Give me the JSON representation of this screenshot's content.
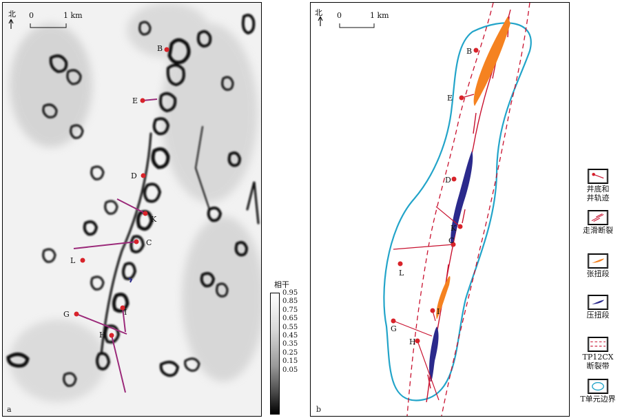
{
  "panel_a": {
    "north": "北",
    "scale": {
      "start": "0",
      "end": "1 km"
    },
    "tag": "a",
    "wells": [
      "B",
      "E",
      "D",
      "K",
      "C",
      "L",
      "G",
      "I",
      "H"
    ]
  },
  "colorbar": {
    "title": "相干",
    "ticks": [
      "0.95",
      "0.85",
      "0.75",
      "0.65",
      "0.55",
      "0.45",
      "0.35",
      "0.25",
      "0.15",
      "0.05"
    ]
  },
  "panel_b": {
    "north": "北",
    "scale": {
      "start": "0",
      "end": "1 km"
    },
    "tag": "b",
    "wells": [
      "B",
      "E",
      "D",
      "K",
      "C",
      "L",
      "I",
      "G",
      "H"
    ]
  },
  "legend": {
    "items": [
      {
        "label": "井底和\n井轨迹"
      },
      {
        "label": "走滑断裂"
      },
      {
        "label": "张扭段"
      },
      {
        "label": "压扭段"
      },
      {
        "label": "TP12CX\n断裂带"
      },
      {
        "label": "T单元边界"
      }
    ]
  },
  "colors": {
    "well": "#d8232a",
    "trajectory": "#9b2a7a",
    "fault": "#c8102e",
    "tension": "#f58220",
    "compression": "#2b2a8c",
    "boundary": "#22a4c9"
  }
}
